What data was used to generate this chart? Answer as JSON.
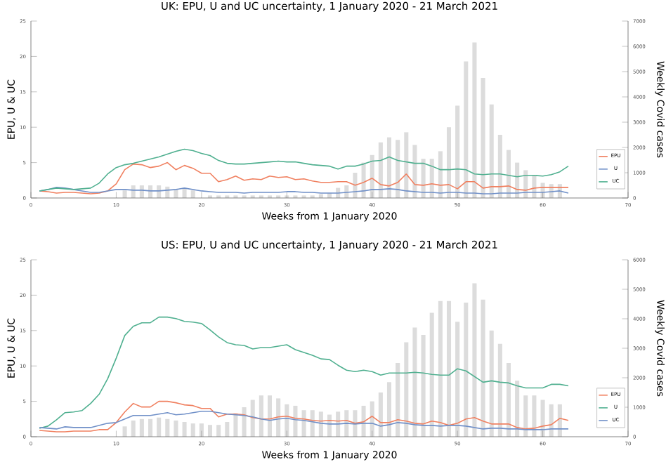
{
  "chart_data": [
    {
      "type": "line",
      "title": "UK: EPU, U and UC uncertainty, 1 January 2020 - 21 March 2021",
      "xlabel": "Weeks from 1 January 2020",
      "ylabel": "EPU, U & UC",
      "y2label": "Weekly Covid cases",
      "x": [
        1,
        2,
        3,
        4,
        5,
        6,
        7,
        8,
        9,
        10,
        11,
        12,
        13,
        14,
        15,
        16,
        17,
        18,
        19,
        20,
        21,
        22,
        23,
        24,
        25,
        26,
        27,
        28,
        29,
        30,
        31,
        32,
        33,
        34,
        35,
        36,
        37,
        38,
        39,
        40,
        41,
        42,
        43,
        44,
        45,
        46,
        47,
        48,
        49,
        50,
        51,
        52,
        53,
        54,
        55,
        56,
        57,
        58,
        59,
        60,
        61,
        62,
        63
      ],
      "xlim": [
        0,
        70
      ],
      "xticks": [
        0,
        10,
        20,
        30,
        40,
        50,
        60,
        70
      ],
      "ylim": [
        0,
        25
      ],
      "yticks": [
        0,
        5,
        10,
        15,
        20,
        25
      ],
      "y2lim": [
        0,
        7000
      ],
      "y2ticks": [
        0,
        1000,
        2000,
        3000,
        4000,
        5000,
        6000,
        7000
      ],
      "grid": false,
      "legend": "bottom right",
      "series": [
        {
          "type": "bar",
          "axis": "y2",
          "color": "#dcdcdc",
          "x": [
            11,
            12,
            13,
            14,
            15,
            16,
            17,
            18,
            19,
            20,
            21,
            22,
            23,
            24,
            25,
            26,
            27,
            28,
            29,
            30,
            31,
            32,
            33,
            34,
            35,
            36,
            37,
            38,
            39,
            40,
            41,
            42,
            43,
            44,
            45,
            46,
            47,
            48,
            49,
            50,
            51,
            52,
            53,
            54,
            55,
            56,
            57,
            58,
            59,
            60,
            61,
            62
          ],
          "values": [
            300,
            500,
            500,
            500,
            500,
            450,
            350,
            400,
            300,
            null,
            100,
            100,
            100,
            100,
            100,
            100,
            100,
            100,
            100,
            100,
            100,
            100,
            100,
            150,
            200,
            400,
            500,
            1000,
            1400,
            1700,
            2200,
            2400,
            2300,
            2600,
            2100,
            1550,
            1550,
            1850,
            2800,
            3650,
            5400,
            6150,
            4750,
            3700,
            2500,
            1900,
            1400,
            1100,
            900,
            600,
            550,
            550
          ]
        },
        {
          "name": "EPU",
          "color": "#f08060",
          "values": [
            1.0,
            0.9,
            0.7,
            0.8,
            0.8,
            0.7,
            0.6,
            0.7,
            1.0,
            2.0,
            4.0,
            4.8,
            4.7,
            4.3,
            4.5,
            5.0,
            4.0,
            4.6,
            4.2,
            3.5,
            3.5,
            2.3,
            2.6,
            3.1,
            2.5,
            2.7,
            2.6,
            3.1,
            2.9,
            3.0,
            2.6,
            2.7,
            2.4,
            2.2,
            2.2,
            2.3,
            2.3,
            1.8,
            2.2,
            2.8,
            1.9,
            1.7,
            2.2,
            3.4,
            1.9,
            1.8,
            2.0,
            1.8,
            1.9,
            1.3,
            2.3,
            2.3,
            1.4,
            1.6,
            1.6,
            1.7,
            1.2,
            1.1,
            1.4,
            1.5,
            1.5,
            1.5,
            1.5
          ]
        },
        {
          "name": "U",
          "color": "#7090c8",
          "values": [
            1.0,
            1.2,
            1.5,
            1.4,
            1.2,
            1.0,
            0.8,
            0.8,
            1.0,
            1.2,
            1.2,
            1.1,
            1.1,
            1.0,
            1.0,
            1.1,
            1.2,
            1.4,
            1.2,
            1.0,
            0.9,
            0.8,
            0.8,
            0.8,
            0.7,
            0.8,
            0.8,
            0.8,
            0.8,
            0.9,
            0.9,
            0.8,
            0.8,
            0.7,
            0.7,
            0.7,
            0.8,
            0.9,
            1.0,
            1.2,
            1.2,
            1.3,
            1.2,
            1.0,
            0.9,
            0.8,
            0.8,
            0.7,
            0.8,
            0.8,
            0.7,
            0.7,
            0.6,
            0.6,
            0.7,
            0.7,
            0.7,
            0.8,
            0.8,
            0.8,
            0.9,
            1.0,
            0.7
          ]
        },
        {
          "name": "UC",
          "color": "#50b090",
          "values": [
            1.0,
            1.2,
            1.4,
            1.3,
            1.2,
            1.3,
            1.4,
            2.1,
            3.4,
            4.3,
            4.7,
            4.9,
            5.2,
            5.5,
            5.8,
            6.2,
            6.6,
            6.9,
            6.7,
            6.3,
            6.0,
            5.3,
            4.9,
            4.8,
            4.8,
            4.9,
            5.0,
            5.1,
            5.2,
            5.1,
            5.1,
            4.9,
            4.7,
            4.6,
            4.5,
            4.1,
            4.5,
            4.5,
            4.8,
            5.2,
            5.3,
            5.8,
            5.3,
            5.1,
            4.9,
            4.9,
            4.5,
            4.0,
            4.0,
            4.1,
            4.0,
            3.4,
            3.3,
            3.4,
            3.4,
            3.2,
            3.0,
            3.2,
            3.2,
            3.1,
            3.3,
            3.7,
            4.5
          ]
        }
      ]
    },
    {
      "type": "line",
      "title": "US: EPU, U and UC uncertainty, 1 January 2020 - 21 March 2021",
      "xlabel": "Weeks from 1 January 2020",
      "ylabel": "EPU, U & UC",
      "y2label": "Weekly Covid cases",
      "x": [
        1,
        2,
        3,
        4,
        5,
        6,
        7,
        8,
        9,
        10,
        11,
        12,
        13,
        14,
        15,
        16,
        17,
        18,
        19,
        20,
        21,
        22,
        23,
        24,
        25,
        26,
        27,
        28,
        29,
        30,
        31,
        32,
        33,
        34,
        35,
        36,
        37,
        38,
        39,
        40,
        41,
        42,
        43,
        44,
        45,
        46,
        47,
        48,
        49,
        50,
        51,
        52,
        53,
        54,
        55,
        56,
        57,
        58,
        59,
        60,
        61,
        62,
        63
      ],
      "xlim": [
        0,
        70
      ],
      "xticks": [
        0,
        10,
        20,
        30,
        40,
        50,
        60,
        70
      ],
      "ylim": [
        0,
        25
      ],
      "yticks": [
        0,
        5,
        10,
        15,
        20,
        25
      ],
      "y2lim": [
        0,
        6000
      ],
      "y2ticks": [
        0,
        1000,
        2000,
        3000,
        4000,
        5000,
        6000
      ],
      "grid": false,
      "legend": "bottom right",
      "series": [
        {
          "type": "bar",
          "axis": "y2",
          "color": "#dcdcdc",
          "x": [
            11,
            12,
            13,
            14,
            15,
            16,
            17,
            18,
            19,
            20,
            21,
            22,
            23,
            24,
            25,
            26,
            27,
            28,
            29,
            30,
            31,
            32,
            33,
            34,
            35,
            36,
            37,
            38,
            39,
            40,
            41,
            42,
            43,
            44,
            45,
            46,
            47,
            48,
            49,
            50,
            51,
            52,
            53,
            54,
            55,
            56,
            57,
            58,
            59,
            60,
            61,
            62
          ],
          "values": [
            350,
            550,
            600,
            600,
            650,
            600,
            550,
            500,
            450,
            450,
            400,
            400,
            500,
            800,
            1000,
            1250,
            1400,
            1400,
            1300,
            1100,
            1050,
            900,
            900,
            850,
            750,
            850,
            900,
            900,
            1050,
            1200,
            1500,
            1850,
            2500,
            3200,
            3700,
            3450,
            4200,
            4600,
            4600,
            3900,
            4550,
            5200,
            4650,
            3600,
            3150,
            2500,
            1900,
            1400,
            1400,
            1250,
            1100,
            1100
          ]
        },
        {
          "name": "EPU",
          "color": "#f08060",
          "values": [
            0.9,
            0.8,
            0.7,
            0.7,
            0.8,
            0.8,
            0.8,
            1.0,
            1.0,
            2.0,
            3.5,
            4.7,
            4.2,
            4.2,
            5.0,
            5.0,
            4.8,
            4.5,
            4.4,
            4.0,
            4.0,
            2.8,
            3.2,
            3.2,
            3.1,
            2.7,
            2.5,
            2.5,
            2.8,
            2.9,
            2.6,
            2.5,
            2.3,
            2.2,
            2.3,
            2.2,
            2.3,
            1.9,
            2.1,
            2.9,
            2.0,
            2.0,
            2.4,
            2.2,
            1.9,
            1.8,
            2.2,
            2.0,
            1.6,
            1.9,
            2.5,
            2.7,
            2.2,
            1.8,
            1.8,
            1.8,
            1.3,
            1.1,
            1.2,
            1.5,
            1.7,
            2.6,
            2.3
          ]
        },
        {
          "name": "U",
          "color": "#50b090",
          "values": [
            1.2,
            1.5,
            2.4,
            3.4,
            3.5,
            3.7,
            4.7,
            6.0,
            8.2,
            11.1,
            14.3,
            15.6,
            16.1,
            16.1,
            16.9,
            16.9,
            16.7,
            16.3,
            16.2,
            16.0,
            15.1,
            14.1,
            13.3,
            13.0,
            12.9,
            12.4,
            12.6,
            12.6,
            12.8,
            13.0,
            12.3,
            11.9,
            11.5,
            11.0,
            10.9,
            10.1,
            9.4,
            9.2,
            9.4,
            9.2,
            8.7,
            9.0,
            9.0,
            9.0,
            9.1,
            9.0,
            8.8,
            8.7,
            8.7,
            9.6,
            9.3,
            8.5,
            7.7,
            7.9,
            7.7,
            7.6,
            7.2,
            6.9,
            6.9,
            6.9,
            7.4,
            7.4,
            7.2
          ]
        },
        {
          "name": "UC",
          "color": "#7090c8",
          "values": [
            1.3,
            1.2,
            1.1,
            1.4,
            1.3,
            1.3,
            1.3,
            1.6,
            1.9,
            2.0,
            2.5,
            3.0,
            3.0,
            3.0,
            3.2,
            3.4,
            3.1,
            3.2,
            3.4,
            3.6,
            3.6,
            3.4,
            3.2,
            3.1,
            3.0,
            2.8,
            2.5,
            2.3,
            2.5,
            2.6,
            2.4,
            2.3,
            2.1,
            1.9,
            1.8,
            1.8,
            1.9,
            1.8,
            1.9,
            1.9,
            1.5,
            1.7,
            2.0,
            1.9,
            1.7,
            1.6,
            1.6,
            1.5,
            1.6,
            1.6,
            1.5,
            1.3,
            1.1,
            1.2,
            1.2,
            1.1,
            1.1,
            1.0,
            1.0,
            1.0,
            1.1,
            1.1,
            1.1
          ]
        }
      ]
    }
  ]
}
